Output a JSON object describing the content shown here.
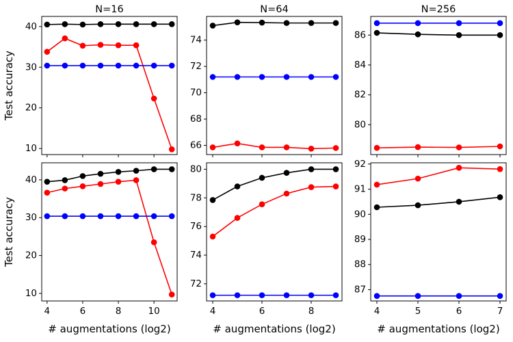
{
  "chart_data": [
    {
      "type": "line",
      "title": "N=16",
      "ylabel": "Test accuracy",
      "xlabel": "",
      "xlim": [
        3.7,
        11.3
      ],
      "ylim": [
        8.5,
        42.5
      ],
      "xticks": [
        4,
        6,
        8,
        10
      ],
      "yticks": [
        10,
        20,
        30,
        40
      ],
      "show_xtick_labels": false,
      "series": [
        {
          "color": "#000000",
          "x": [
            4,
            5,
            6,
            7,
            8,
            9,
            10,
            11
          ],
          "values": [
            40.5,
            40.6,
            40.5,
            40.6,
            40.6,
            40.6,
            40.6,
            40.6
          ]
        },
        {
          "color": "#ff0000",
          "x": [
            4,
            5,
            6,
            7,
            8,
            9,
            10,
            11
          ],
          "values": [
            33.8,
            37.1,
            35.3,
            35.5,
            35.4,
            35.4,
            22.3,
            9.8
          ]
        },
        {
          "color": "#0000ff",
          "x": [
            4,
            5,
            6,
            7,
            8,
            9,
            10,
            11
          ],
          "values": [
            30.4,
            30.4,
            30.4,
            30.4,
            30.4,
            30.4,
            30.4,
            30.4
          ]
        }
      ]
    },
    {
      "type": "line",
      "title": "N=64",
      "ylabel": "",
      "xlabel": "",
      "xlim": [
        3.75,
        9.25
      ],
      "ylim": [
        65.3,
        75.8
      ],
      "xticks": [
        4,
        6,
        8
      ],
      "yticks": [
        66,
        68,
        70,
        72,
        74
      ],
      "show_xtick_labels": false,
      "series": [
        {
          "color": "#000000",
          "x": [
            4,
            5,
            6,
            7,
            8,
            9
          ],
          "values": [
            75.1,
            75.35,
            75.33,
            75.3,
            75.3,
            75.3
          ]
        },
        {
          "color": "#0000ff",
          "x": [
            4,
            5,
            6,
            7,
            8,
            9
          ],
          "values": [
            71.2,
            71.2,
            71.2,
            71.2,
            71.2,
            71.2
          ]
        },
        {
          "color": "#ff0000",
          "x": [
            4,
            5,
            6,
            7,
            8,
            9
          ],
          "values": [
            65.85,
            66.15,
            65.85,
            65.85,
            65.75,
            65.8
          ]
        }
      ]
    },
    {
      "type": "line",
      "title": "N=256",
      "ylabel": "",
      "xlabel": "",
      "xlim": [
        3.85,
        7.15
      ],
      "ylim": [
        78.0,
        87.25
      ],
      "xticks": [
        4,
        5,
        6,
        7
      ],
      "yticks": [
        80,
        82,
        84,
        86
      ],
      "show_xtick_labels": false,
      "series": [
        {
          "color": "#0000ff",
          "x": [
            4,
            5,
            6,
            7
          ],
          "values": [
            86.8,
            86.8,
            86.8,
            86.8
          ]
        },
        {
          "color": "#000000",
          "x": [
            4,
            5,
            6,
            7
          ],
          "values": [
            86.15,
            86.05,
            86.0,
            86.0
          ]
        },
        {
          "color": "#ff0000",
          "x": [
            4,
            5,
            6,
            7
          ],
          "values": [
            78.45,
            78.5,
            78.48,
            78.55
          ]
        }
      ]
    },
    {
      "type": "line",
      "title": "",
      "ylabel": "Test accuracy",
      "xlabel": "# augmentations (log2)",
      "xlim": [
        3.7,
        11.3
      ],
      "ylim": [
        8.0,
        44.5
      ],
      "xticks": [
        4,
        6,
        8,
        10
      ],
      "yticks": [
        10,
        20,
        30,
        40
      ],
      "show_xtick_labels": true,
      "series": [
        {
          "color": "#000000",
          "x": [
            4,
            5,
            6,
            7,
            8,
            9,
            10,
            11
          ],
          "values": [
            39.5,
            39.9,
            41.0,
            41.6,
            42.1,
            42.4,
            42.8,
            42.8
          ]
        },
        {
          "color": "#ff0000",
          "x": [
            4,
            5,
            6,
            7,
            8,
            9,
            10,
            11
          ],
          "values": [
            36.6,
            37.7,
            38.3,
            38.9,
            39.5,
            39.9,
            23.5,
            9.7
          ]
        },
        {
          "color": "#0000ff",
          "x": [
            4,
            5,
            6,
            7,
            8,
            9,
            10,
            11
          ],
          "values": [
            30.4,
            30.4,
            30.4,
            30.4,
            30.4,
            30.4,
            30.4,
            30.4
          ]
        }
      ]
    },
    {
      "type": "line",
      "title": "",
      "ylabel": "",
      "xlabel": "# augmentations (log2)",
      "xlim": [
        3.75,
        9.25
      ],
      "ylim": [
        70.8,
        80.45
      ],
      "xticks": [
        4,
        6,
        8
      ],
      "yticks": [
        72,
        74,
        76,
        78,
        80
      ],
      "show_xtick_labels": true,
      "series": [
        {
          "color": "#000000",
          "x": [
            4,
            5,
            6,
            7,
            8,
            9
          ],
          "values": [
            77.85,
            78.8,
            79.4,
            79.75,
            80.0,
            80.0
          ]
        },
        {
          "color": "#ff0000",
          "x": [
            4,
            5,
            6,
            7,
            8,
            9
          ],
          "values": [
            75.3,
            76.6,
            77.55,
            78.3,
            78.75,
            78.8
          ]
        },
        {
          "color": "#0000ff",
          "x": [
            4,
            5,
            6,
            7,
            8,
            9
          ],
          "values": [
            71.2,
            71.2,
            71.2,
            71.2,
            71.2,
            71.2
          ]
        }
      ]
    },
    {
      "type": "line",
      "title": "",
      "ylabel": "",
      "xlabel": "# augmentations (log2)",
      "xlim": [
        3.85,
        7.15
      ],
      "ylim": [
        86.55,
        92.05
      ],
      "xticks": [
        4,
        5,
        6,
        7
      ],
      "yticks": [
        87,
        88,
        89,
        90,
        91,
        92
      ],
      "show_xtick_labels": true,
      "series": [
        {
          "color": "#ff0000",
          "x": [
            4,
            5,
            6,
            7
          ],
          "values": [
            91.18,
            91.42,
            91.85,
            91.8
          ]
        },
        {
          "color": "#000000",
          "x": [
            4,
            5,
            6,
            7
          ],
          "values": [
            90.28,
            90.36,
            90.5,
            90.68
          ]
        },
        {
          "color": "#0000ff",
          "x": [
            4,
            5,
            6,
            7
          ],
          "values": [
            86.75,
            86.75,
            86.75,
            86.75
          ]
        }
      ]
    }
  ]
}
